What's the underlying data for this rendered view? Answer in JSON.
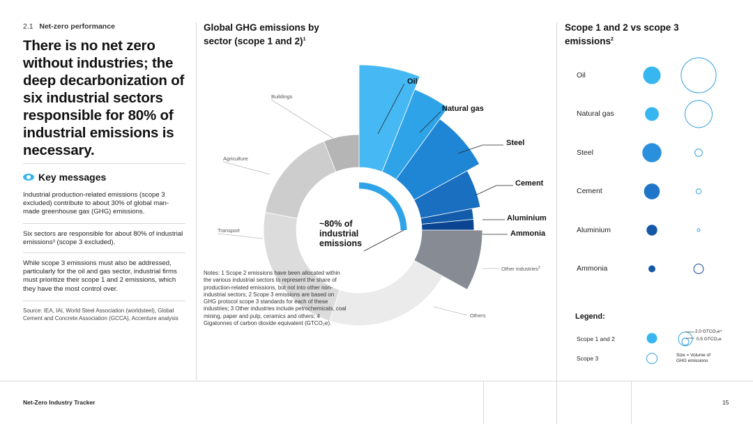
{
  "section": {
    "number": "2.1",
    "label": "Net-zero performance"
  },
  "headline": "There is no net zero without industries; the deep decarbonization of six industrial sectors responsible for 80% of industrial emissions is necessary.",
  "key_messages": {
    "title": "Key messages",
    "items": [
      "Industrial production-related emissions (scope 3 excluded) contribute to about 30% of global man-made greenhouse gas (GHG) emissions.",
      "Six sectors are responsible for about 80% of industrial emissions³ (scope 3 excluded).",
      "While scope 3 emissions must also be addressed, particularly for the oil and gas sector, industrial firms must prioritize their scope 1 and 2 emissions, which they have the most control over."
    ]
  },
  "source": "Source: IEA, IAI, World Steel Association (worldsteel), Global Cement and Concrete Association (GCCA), Accenture analysis",
  "chart": {
    "title": "Global GHG emissions by sector (scope 1 and 2)",
    "title_sup": "1",
    "center_label": [
      "~80% of",
      "industrial",
      "emissions"
    ],
    "labels": {
      "oil": "Oil",
      "natural_gas": "Natural gas",
      "steel": "Steel",
      "cement": "Cement",
      "aluminium": "Aluminium",
      "ammonia": "Ammonia",
      "other_industries": "Other industries",
      "other_industries_sup": "3",
      "others": "Others",
      "transport": "Transport",
      "agriculture": "Agriculture",
      "buildings": "Buildings"
    }
  },
  "chart_data": {
    "type": "pie",
    "title": "Global GHG emissions by sector (scope 1 and 2)",
    "note": "Highlighted sectors make up ~80% of industrial emissions; values estimated from slice angles (% of total)",
    "slices": [
      {
        "name": "Oil",
        "value": 6,
        "color": "#46b9f5"
      },
      {
        "name": "Natural gas",
        "value": 4,
        "color": "#2ea3e8"
      },
      {
        "name": "Steel",
        "value": 7,
        "color": "#1f86d6"
      },
      {
        "name": "Cement",
        "value": 5,
        "color": "#1a6fc0"
      },
      {
        "name": "Aluminium",
        "value": 1.5,
        "color": "#125cab"
      },
      {
        "name": "Ammonia",
        "value": 1.5,
        "color": "#0b4592"
      },
      {
        "name": "Other industries",
        "value": 8,
        "color": "#868b94"
      },
      {
        "name": "Others",
        "value": 22,
        "color": "#ebebeb"
      },
      {
        "name": "Transport",
        "value": 23,
        "color": "#dcdcdc"
      },
      {
        "name": "Agriculture",
        "value": 16,
        "color": "#cdcdcd"
      },
      {
        "name": "Buildings",
        "value": 6,
        "color": "#b5b5b5"
      }
    ]
  },
  "notes": "Notes: 1 Scope 2 emissions have been allocated within the various industrial sectors to represent the share of production-related emissions, but not into other non-industrial sectors; 2 Scope 3 emissions are based on GHG protocol scope 3 standards for each of these industries; 3 Other industries include petrochemicals, coal mining, paper and pulp, ceramics and others; 4 Gigatonnes of carbon dioxide equivalent (GTCO₂e).",
  "scope": {
    "title": "Scope 1 and 2 vs scope 3 emissions",
    "title_sup": "2",
    "rows": [
      {
        "name": "Oil",
        "scope12": 1.6,
        "scope3": 3.3
      },
      {
        "name": "Natural gas",
        "scope12": 1.0,
        "scope3": 2.0
      },
      {
        "name": "Steel",
        "scope12": 1.9,
        "scope3": 0.15
      },
      {
        "name": "Cement",
        "scope12": 1.3,
        "scope3": 0.07
      },
      {
        "name": "Aluminium",
        "scope12": 0.6,
        "scope3": 0.02
      },
      {
        "name": "Ammonia",
        "scope12": 0.25,
        "scope3": 0.25
      }
    ],
    "colors": {
      "scope12": "#38b6f0",
      "scope3_stroke": "#2f9fe0"
    },
    "legend": {
      "title": "Legend:",
      "scope12": "Scope 1 and 2",
      "scope3": "Scope 3",
      "big_value": "2.0 GTCO₂e⁴",
      "small_value": "0.5 GTCO₂e",
      "size_note": "Size = Volume of GHG emissions"
    }
  },
  "footer": {
    "title": "Net-Zero Industry Tracker",
    "page": "15"
  }
}
